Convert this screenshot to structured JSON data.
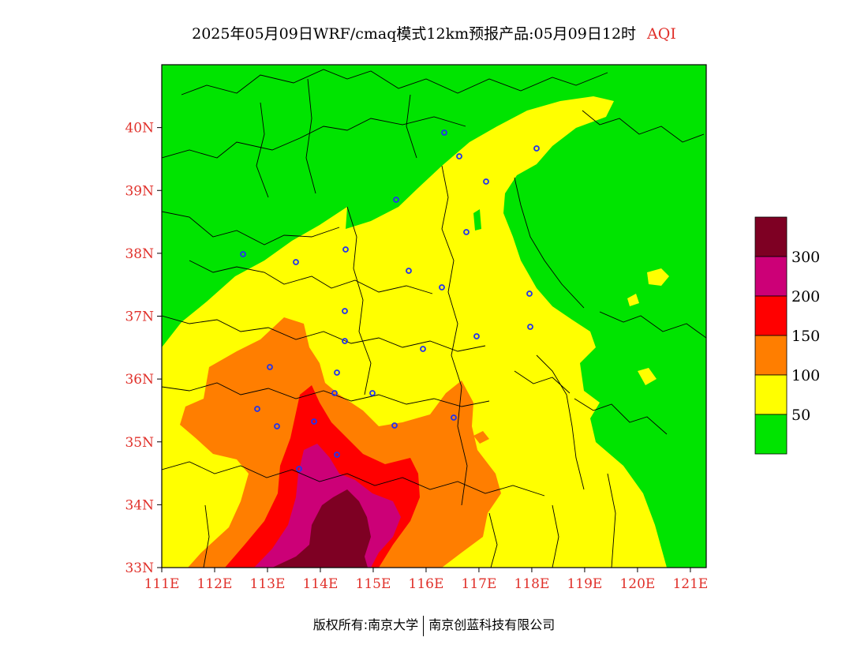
{
  "header": {
    "title": "2025年05月09日WRF/cmaq模式12km预报产品:05月09日12时",
    "product": "AQI"
  },
  "map": {
    "lon_range": [
      111,
      121.3
    ],
    "lat_range": [
      33,
      41
    ],
    "lat_ticks": [
      33,
      34,
      35,
      36,
      37,
      38,
      39,
      40
    ],
    "lat_labels": [
      "33N",
      "34N",
      "35N",
      "36N",
      "37N",
      "38N",
      "39N",
      "40N"
    ],
    "lon_ticks": [
      111,
      112,
      113,
      114,
      115,
      116,
      117,
      118,
      119,
      120,
      121
    ],
    "lon_labels": [
      "111E",
      "112E",
      "113E",
      "114E",
      "115E",
      "116E",
      "117E",
      "118E",
      "119E",
      "120E",
      "121E"
    ],
    "tick_color": "#e0302a"
  },
  "legend": {
    "labels": [
      "50",
      "100",
      "150",
      "200",
      "300"
    ],
    "colors": [
      "#00e400",
      "#ffff00",
      "#ff7e00",
      "#ff0000",
      "#cc0077",
      "#7e0023"
    ]
  },
  "footer": {
    "left": "版权所有:南京大学",
    "right": "南京创蓝科技有限公司"
  }
}
